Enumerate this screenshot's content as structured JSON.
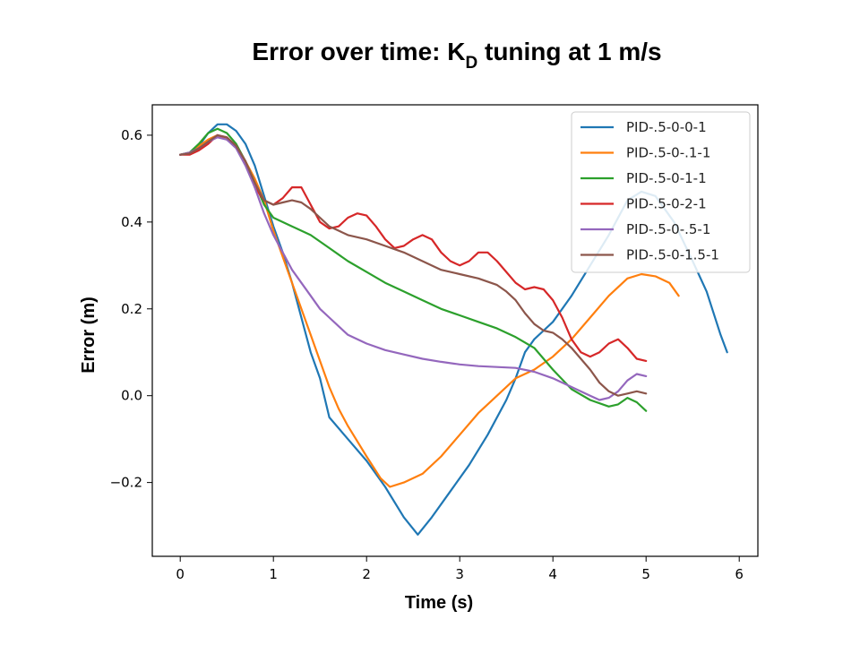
{
  "chart_data": {
    "type": "line",
    "title": {
      "main": "Error over time: K",
      "sub": "D",
      "rest": " tuning at 1 m/s"
    },
    "xlabel": "Time (s)",
    "ylabel": "Error (m)",
    "xlim": [
      -0.3,
      6.2
    ],
    "ylim": [
      -0.37,
      0.67
    ],
    "xticks": [
      0,
      1,
      2,
      3,
      4,
      5,
      6
    ],
    "xtick_labels": [
      "0",
      "1",
      "2",
      "3",
      "4",
      "5",
      "6"
    ],
    "yticks": [
      -0.2,
      0.0,
      0.2,
      0.4,
      0.6
    ],
    "ytick_labels": [
      "−0.2",
      "0.0",
      "0.2",
      "0.4",
      "0.6"
    ],
    "grid": false,
    "legend_position": "top-right",
    "series": [
      {
        "name": "PID-.5-0-0-1",
        "color": "#1f77b4",
        "points": [
          [
            0,
            0.555
          ],
          [
            0.1,
            0.56
          ],
          [
            0.2,
            0.575
          ],
          [
            0.3,
            0.605
          ],
          [
            0.4,
            0.625
          ],
          [
            0.5,
            0.625
          ],
          [
            0.6,
            0.61
          ],
          [
            0.7,
            0.58
          ],
          [
            0.8,
            0.53
          ],
          [
            0.9,
            0.46
          ],
          [
            1.0,
            0.39
          ],
          [
            1.1,
            0.33
          ],
          [
            1.2,
            0.26
          ],
          [
            1.3,
            0.18
          ],
          [
            1.4,
            0.1
          ],
          [
            1.5,
            0.04
          ],
          [
            1.6,
            -0.05
          ],
          [
            1.8,
            -0.1
          ],
          [
            2.0,
            -0.15
          ],
          [
            2.2,
            -0.21
          ],
          [
            2.4,
            -0.28
          ],
          [
            2.55,
            -0.32
          ],
          [
            2.7,
            -0.28
          ],
          [
            2.9,
            -0.22
          ],
          [
            3.1,
            -0.16
          ],
          [
            3.3,
            -0.09
          ],
          [
            3.5,
            -0.01
          ],
          [
            3.6,
            0.04
          ],
          [
            3.7,
            0.1
          ],
          [
            3.8,
            0.13
          ],
          [
            3.9,
            0.15
          ],
          [
            4.0,
            0.17
          ],
          [
            4.2,
            0.23
          ],
          [
            4.4,
            0.3
          ],
          [
            4.6,
            0.37
          ],
          [
            4.8,
            0.45
          ],
          [
            4.95,
            0.47
          ],
          [
            5.1,
            0.46
          ],
          [
            5.3,
            0.4
          ],
          [
            5.5,
            0.31
          ],
          [
            5.65,
            0.24
          ],
          [
            5.8,
            0.14
          ],
          [
            5.87,
            0.1
          ]
        ]
      },
      {
        "name": "PID-.5-0-.1-1",
        "color": "#ff7f0e",
        "points": [
          [
            0,
            0.555
          ],
          [
            0.1,
            0.56
          ],
          [
            0.2,
            0.575
          ],
          [
            0.3,
            0.59
          ],
          [
            0.4,
            0.6
          ],
          [
            0.5,
            0.59
          ],
          [
            0.6,
            0.575
          ],
          [
            0.7,
            0.54
          ],
          [
            0.8,
            0.5
          ],
          [
            0.9,
            0.45
          ],
          [
            1.0,
            0.38
          ],
          [
            1.1,
            0.32
          ],
          [
            1.2,
            0.26
          ],
          [
            1.3,
            0.2
          ],
          [
            1.4,
            0.14
          ],
          [
            1.5,
            0.08
          ],
          [
            1.6,
            0.02
          ],
          [
            1.7,
            -0.03
          ],
          [
            1.8,
            -0.07
          ],
          [
            2.0,
            -0.14
          ],
          [
            2.15,
            -0.19
          ],
          [
            2.25,
            -0.21
          ],
          [
            2.4,
            -0.2
          ],
          [
            2.6,
            -0.18
          ],
          [
            2.8,
            -0.14
          ],
          [
            3.0,
            -0.09
          ],
          [
            3.2,
            -0.04
          ],
          [
            3.4,
            0.0
          ],
          [
            3.6,
            0.04
          ],
          [
            3.8,
            0.06
          ],
          [
            4.0,
            0.09
          ],
          [
            4.2,
            0.13
          ],
          [
            4.4,
            0.18
          ],
          [
            4.6,
            0.23
          ],
          [
            4.8,
            0.27
          ],
          [
            4.95,
            0.28
          ],
          [
            5.1,
            0.275
          ],
          [
            5.25,
            0.26
          ],
          [
            5.35,
            0.23
          ]
        ]
      },
      {
        "name": "PID-.5-0-1-1",
        "color": "#2ca02c",
        "points": [
          [
            0,
            0.555
          ],
          [
            0.1,
            0.56
          ],
          [
            0.2,
            0.58
          ],
          [
            0.3,
            0.605
          ],
          [
            0.4,
            0.615
          ],
          [
            0.5,
            0.605
          ],
          [
            0.6,
            0.58
          ],
          [
            0.7,
            0.54
          ],
          [
            0.8,
            0.49
          ],
          [
            0.9,
            0.44
          ],
          [
            1.0,
            0.41
          ],
          [
            1.2,
            0.39
          ],
          [
            1.4,
            0.37
          ],
          [
            1.6,
            0.34
          ],
          [
            1.8,
            0.31
          ],
          [
            2.0,
            0.285
          ],
          [
            2.2,
            0.26
          ],
          [
            2.4,
            0.24
          ],
          [
            2.6,
            0.22
          ],
          [
            2.8,
            0.2
          ],
          [
            3.0,
            0.185
          ],
          [
            3.2,
            0.17
          ],
          [
            3.4,
            0.155
          ],
          [
            3.6,
            0.135
          ],
          [
            3.8,
            0.11
          ],
          [
            4.0,
            0.06
          ],
          [
            4.2,
            0.015
          ],
          [
            4.4,
            -0.01
          ],
          [
            4.6,
            -0.025
          ],
          [
            4.7,
            -0.02
          ],
          [
            4.8,
            -0.005
          ],
          [
            4.9,
            -0.015
          ],
          [
            5.0,
            -0.035
          ]
        ]
      },
      {
        "name": "PID-.5-0-2-1",
        "color": "#d62728",
        "points": [
          [
            0,
            0.555
          ],
          [
            0.1,
            0.555
          ],
          [
            0.2,
            0.565
          ],
          [
            0.3,
            0.58
          ],
          [
            0.4,
            0.6
          ],
          [
            0.5,
            0.595
          ],
          [
            0.6,
            0.575
          ],
          [
            0.7,
            0.54
          ],
          [
            0.8,
            0.48
          ],
          [
            0.9,
            0.45
          ],
          [
            1.0,
            0.44
          ],
          [
            1.1,
            0.455
          ],
          [
            1.2,
            0.48
          ],
          [
            1.3,
            0.48
          ],
          [
            1.4,
            0.44
          ],
          [
            1.5,
            0.4
          ],
          [
            1.6,
            0.385
          ],
          [
            1.7,
            0.39
          ],
          [
            1.8,
            0.41
          ],
          [
            1.9,
            0.42
          ],
          [
            2.0,
            0.415
          ],
          [
            2.1,
            0.39
          ],
          [
            2.2,
            0.36
          ],
          [
            2.3,
            0.34
          ],
          [
            2.4,
            0.345
          ],
          [
            2.5,
            0.36
          ],
          [
            2.6,
            0.37
          ],
          [
            2.7,
            0.36
          ],
          [
            2.8,
            0.33
          ],
          [
            2.9,
            0.31
          ],
          [
            3.0,
            0.3
          ],
          [
            3.1,
            0.31
          ],
          [
            3.2,
            0.33
          ],
          [
            3.3,
            0.33
          ],
          [
            3.4,
            0.31
          ],
          [
            3.5,
            0.285
          ],
          [
            3.6,
            0.26
          ],
          [
            3.7,
            0.245
          ],
          [
            3.8,
            0.25
          ],
          [
            3.9,
            0.245
          ],
          [
            4.0,
            0.22
          ],
          [
            4.1,
            0.18
          ],
          [
            4.2,
            0.13
          ],
          [
            4.3,
            0.1
          ],
          [
            4.4,
            0.09
          ],
          [
            4.5,
            0.1
          ],
          [
            4.6,
            0.12
          ],
          [
            4.7,
            0.13
          ],
          [
            4.8,
            0.11
          ],
          [
            4.9,
            0.085
          ],
          [
            5.0,
            0.08
          ]
        ]
      },
      {
        "name": "PID-.5-0-.5-1",
        "color": "#9467bd",
        "points": [
          [
            0,
            0.555
          ],
          [
            0.1,
            0.56
          ],
          [
            0.2,
            0.57
          ],
          [
            0.3,
            0.585
          ],
          [
            0.4,
            0.595
          ],
          [
            0.5,
            0.59
          ],
          [
            0.6,
            0.57
          ],
          [
            0.7,
            0.53
          ],
          [
            0.8,
            0.48
          ],
          [
            0.9,
            0.42
          ],
          [
            1.0,
            0.37
          ],
          [
            1.1,
            0.33
          ],
          [
            1.2,
            0.29
          ],
          [
            1.3,
            0.26
          ],
          [
            1.4,
            0.23
          ],
          [
            1.5,
            0.2
          ],
          [
            1.6,
            0.18
          ],
          [
            1.7,
            0.16
          ],
          [
            1.8,
            0.14
          ],
          [
            2.0,
            0.12
          ],
          [
            2.2,
            0.105
          ],
          [
            2.4,
            0.095
          ],
          [
            2.6,
            0.085
          ],
          [
            2.8,
            0.078
          ],
          [
            3.0,
            0.072
          ],
          [
            3.2,
            0.068
          ],
          [
            3.4,
            0.066
          ],
          [
            3.6,
            0.064
          ],
          [
            3.8,
            0.055
          ],
          [
            4.0,
            0.04
          ],
          [
            4.2,
            0.02
          ],
          [
            4.4,
            0.0
          ],
          [
            4.5,
            -0.01
          ],
          [
            4.6,
            -0.005
          ],
          [
            4.7,
            0.01
          ],
          [
            4.8,
            0.035
          ],
          [
            4.9,
            0.05
          ],
          [
            5.0,
            0.045
          ]
        ]
      },
      {
        "name": "PID-.5-0-1.5-1",
        "color": "#8c564b",
        "points": [
          [
            0,
            0.555
          ],
          [
            0.1,
            0.558
          ],
          [
            0.2,
            0.57
          ],
          [
            0.3,
            0.585
          ],
          [
            0.4,
            0.6
          ],
          [
            0.5,
            0.595
          ],
          [
            0.6,
            0.575
          ],
          [
            0.7,
            0.54
          ],
          [
            0.8,
            0.49
          ],
          [
            0.9,
            0.45
          ],
          [
            1.0,
            0.44
          ],
          [
            1.1,
            0.445
          ],
          [
            1.2,
            0.45
          ],
          [
            1.3,
            0.445
          ],
          [
            1.4,
            0.43
          ],
          [
            1.5,
            0.41
          ],
          [
            1.6,
            0.39
          ],
          [
            1.7,
            0.38
          ],
          [
            1.8,
            0.37
          ],
          [
            1.9,
            0.365
          ],
          [
            2.0,
            0.36
          ],
          [
            2.2,
            0.345
          ],
          [
            2.4,
            0.33
          ],
          [
            2.6,
            0.31
          ],
          [
            2.8,
            0.29
          ],
          [
            3.0,
            0.28
          ],
          [
            3.2,
            0.27
          ],
          [
            3.4,
            0.255
          ],
          [
            3.5,
            0.24
          ],
          [
            3.6,
            0.22
          ],
          [
            3.7,
            0.19
          ],
          [
            3.8,
            0.165
          ],
          [
            3.9,
            0.15
          ],
          [
            4.0,
            0.145
          ],
          [
            4.1,
            0.13
          ],
          [
            4.2,
            0.11
          ],
          [
            4.3,
            0.085
          ],
          [
            4.4,
            0.06
          ],
          [
            4.5,
            0.03
          ],
          [
            4.6,
            0.01
          ],
          [
            4.7,
            0.0
          ],
          [
            4.8,
            0.005
          ],
          [
            4.9,
            0.01
          ],
          [
            5.0,
            0.005
          ]
        ]
      }
    ]
  }
}
